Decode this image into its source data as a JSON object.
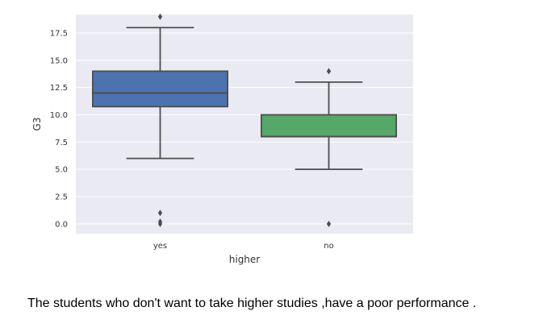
{
  "chart_data": {
    "type": "box",
    "categories": [
      "yes",
      "no"
    ],
    "xlabel": "higher",
    "ylabel": "G3",
    "ylim": [
      -0.9,
      19.2
    ],
    "yticks": [
      "0.0",
      "2.5",
      "5.0",
      "7.5",
      "10.0",
      "12.5",
      "15.0",
      "17.5"
    ],
    "grid": true,
    "boxes": [
      {
        "category": "yes",
        "color": "#4c72b0",
        "whisker_low": 6,
        "q1": 10.75,
        "median": 12,
        "q3": 14,
        "whisker_high": 18,
        "outliers": [
          19,
          1,
          0.2,
          0
        ]
      },
      {
        "category": "no",
        "color": "#55a868",
        "whisker_low": 5,
        "q1": 8,
        "median": 8,
        "q3": 10,
        "whisker_high": 13,
        "outliers": [
          14,
          0
        ]
      }
    ]
  },
  "caption": "The students who don't want to take higher studies ,have a poor performance ."
}
